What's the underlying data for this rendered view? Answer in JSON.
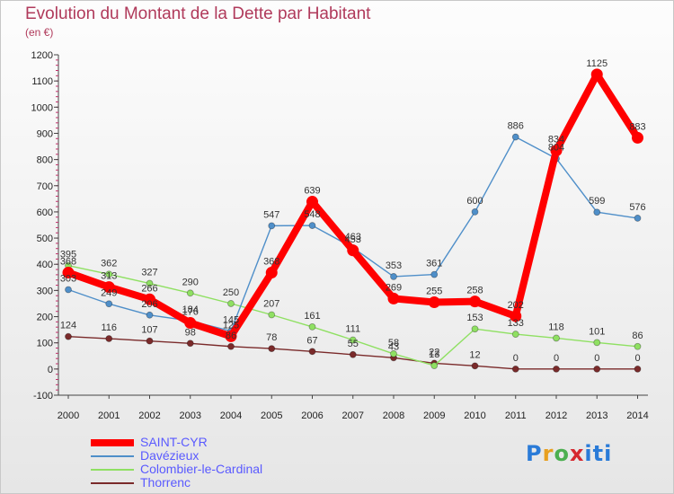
{
  "title": "Evolution du Montant de la Dette par Habitant",
  "unit": "(en €)",
  "logo": "Proxiti",
  "chart_data": {
    "type": "line",
    "x": [
      "2000",
      "2001",
      "2002",
      "2003",
      "2004",
      "2005",
      "2006",
      "2007",
      "2008",
      "2009",
      "2010",
      "2011",
      "2012",
      "2013",
      "2014"
    ],
    "ylim": [
      -100,
      1200
    ],
    "yticks": [
      -100,
      0,
      100,
      200,
      300,
      400,
      500,
      600,
      700,
      800,
      900,
      1000,
      1100,
      1200
    ],
    "grid": false,
    "legend_position": "bottom-left",
    "series": [
      {
        "name": "SAINT-CYR",
        "color": "#ff0000",
        "values": [
          368,
          313,
          266,
          176,
          125,
          368,
          639,
          453,
          269,
          255,
          258,
          202,
          834,
          1125,
          883
        ],
        "labels": [
          "368",
          "313",
          "266",
          "176",
          "125",
          "368",
          "639",
          "453",
          "269",
          "255",
          "258",
          "202",
          "834",
          "1125",
          "883"
        ]
      },
      {
        "name": "Davézieux",
        "color": "#4f8fc9",
        "values": [
          303,
          249,
          206,
          184,
          145,
          547,
          548,
          463,
          353,
          361,
          600,
          886,
          804,
          599,
          576
        ],
        "labels": [
          "303",
          "249",
          "206",
          "184",
          "145",
          "547",
          "548",
          "463",
          "353",
          "361",
          "600",
          "886",
          "804",
          "599",
          "576"
        ]
      },
      {
        "name": "Colombier-le-Cardinal",
        "color": "#8fe062",
        "values": [
          395,
          362,
          327,
          290,
          250,
          207,
          161,
          111,
          58,
          13,
          153,
          133,
          118,
          101,
          86
        ],
        "labels": [
          "395",
          "362",
          "327",
          "290",
          "250",
          "207",
          "161",
          "111",
          "58",
          "13",
          "153",
          "133",
          "118",
          "101",
          "86"
        ]
      },
      {
        "name": "Thorrenc",
        "color": "#7a2a2a",
        "values": [
          124,
          116,
          107,
          98,
          86,
          78,
          67,
          55,
          43,
          22,
          12,
          0,
          0,
          0,
          0
        ],
        "labels": [
          "124",
          "116",
          "107",
          "98",
          "86",
          "78",
          "67",
          "55",
          "43",
          "22",
          "12",
          "0",
          "0",
          "0",
          "0"
        ]
      }
    ]
  }
}
